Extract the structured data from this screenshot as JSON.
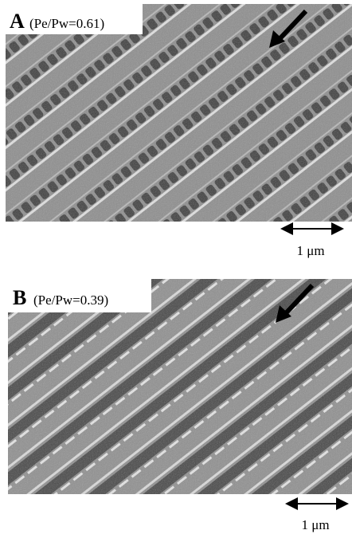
{
  "panels": [
    {
      "label": "A",
      "condition": "(Pe/Pw=0.61)",
      "scale": "1 μm"
    },
    {
      "label": "B",
      "condition": "(Pe/Pw=0.39)",
      "scale": "1 μm"
    }
  ]
}
